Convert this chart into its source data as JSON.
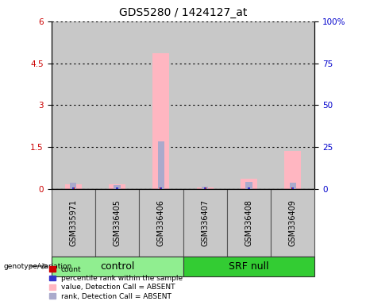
{
  "title": "GDS5280 / 1424127_at",
  "samples": [
    "GSM335971",
    "GSM336405",
    "GSM336406",
    "GSM336407",
    "GSM336408",
    "GSM336409"
  ],
  "pink_bars": [
    0.18,
    0.18,
    4.85,
    0.07,
    0.38,
    1.38
  ],
  "blue_bars": [
    0.24,
    0.14,
    1.72,
    0.1,
    0.26,
    0.24
  ],
  "ylim_left": [
    0,
    6
  ],
  "ylim_right": [
    0,
    100
  ],
  "yticks_left": [
    0,
    1.5,
    3.0,
    4.5,
    6.0
  ],
  "ytick_labels_left": [
    "0",
    "1.5",
    "3",
    "4.5",
    "6"
  ],
  "yticks_right": [
    0,
    25,
    50,
    75,
    100
  ],
  "ytick_labels_right": [
    "0",
    "25",
    "50",
    "75",
    "100%"
  ],
  "ylabel_left_color": "#CC0000",
  "ylabel_right_color": "#0000CC",
  "control_color": "#90EE90",
  "srfnull_color": "#33CC33",
  "box_bg": "#C8C8C8",
  "pink_color": "#FFB6C1",
  "blue_color": "#AAAACC",
  "red_color": "#CC0000",
  "darkblue_color": "#3333CC",
  "legend_labels": [
    "count",
    "percentile rank within the sample",
    "value, Detection Call = ABSENT",
    "rank, Detection Call = ABSENT"
  ],
  "legend_colors": [
    "#CC0000",
    "#3333CC",
    "#FFB6C1",
    "#AAAACC"
  ]
}
